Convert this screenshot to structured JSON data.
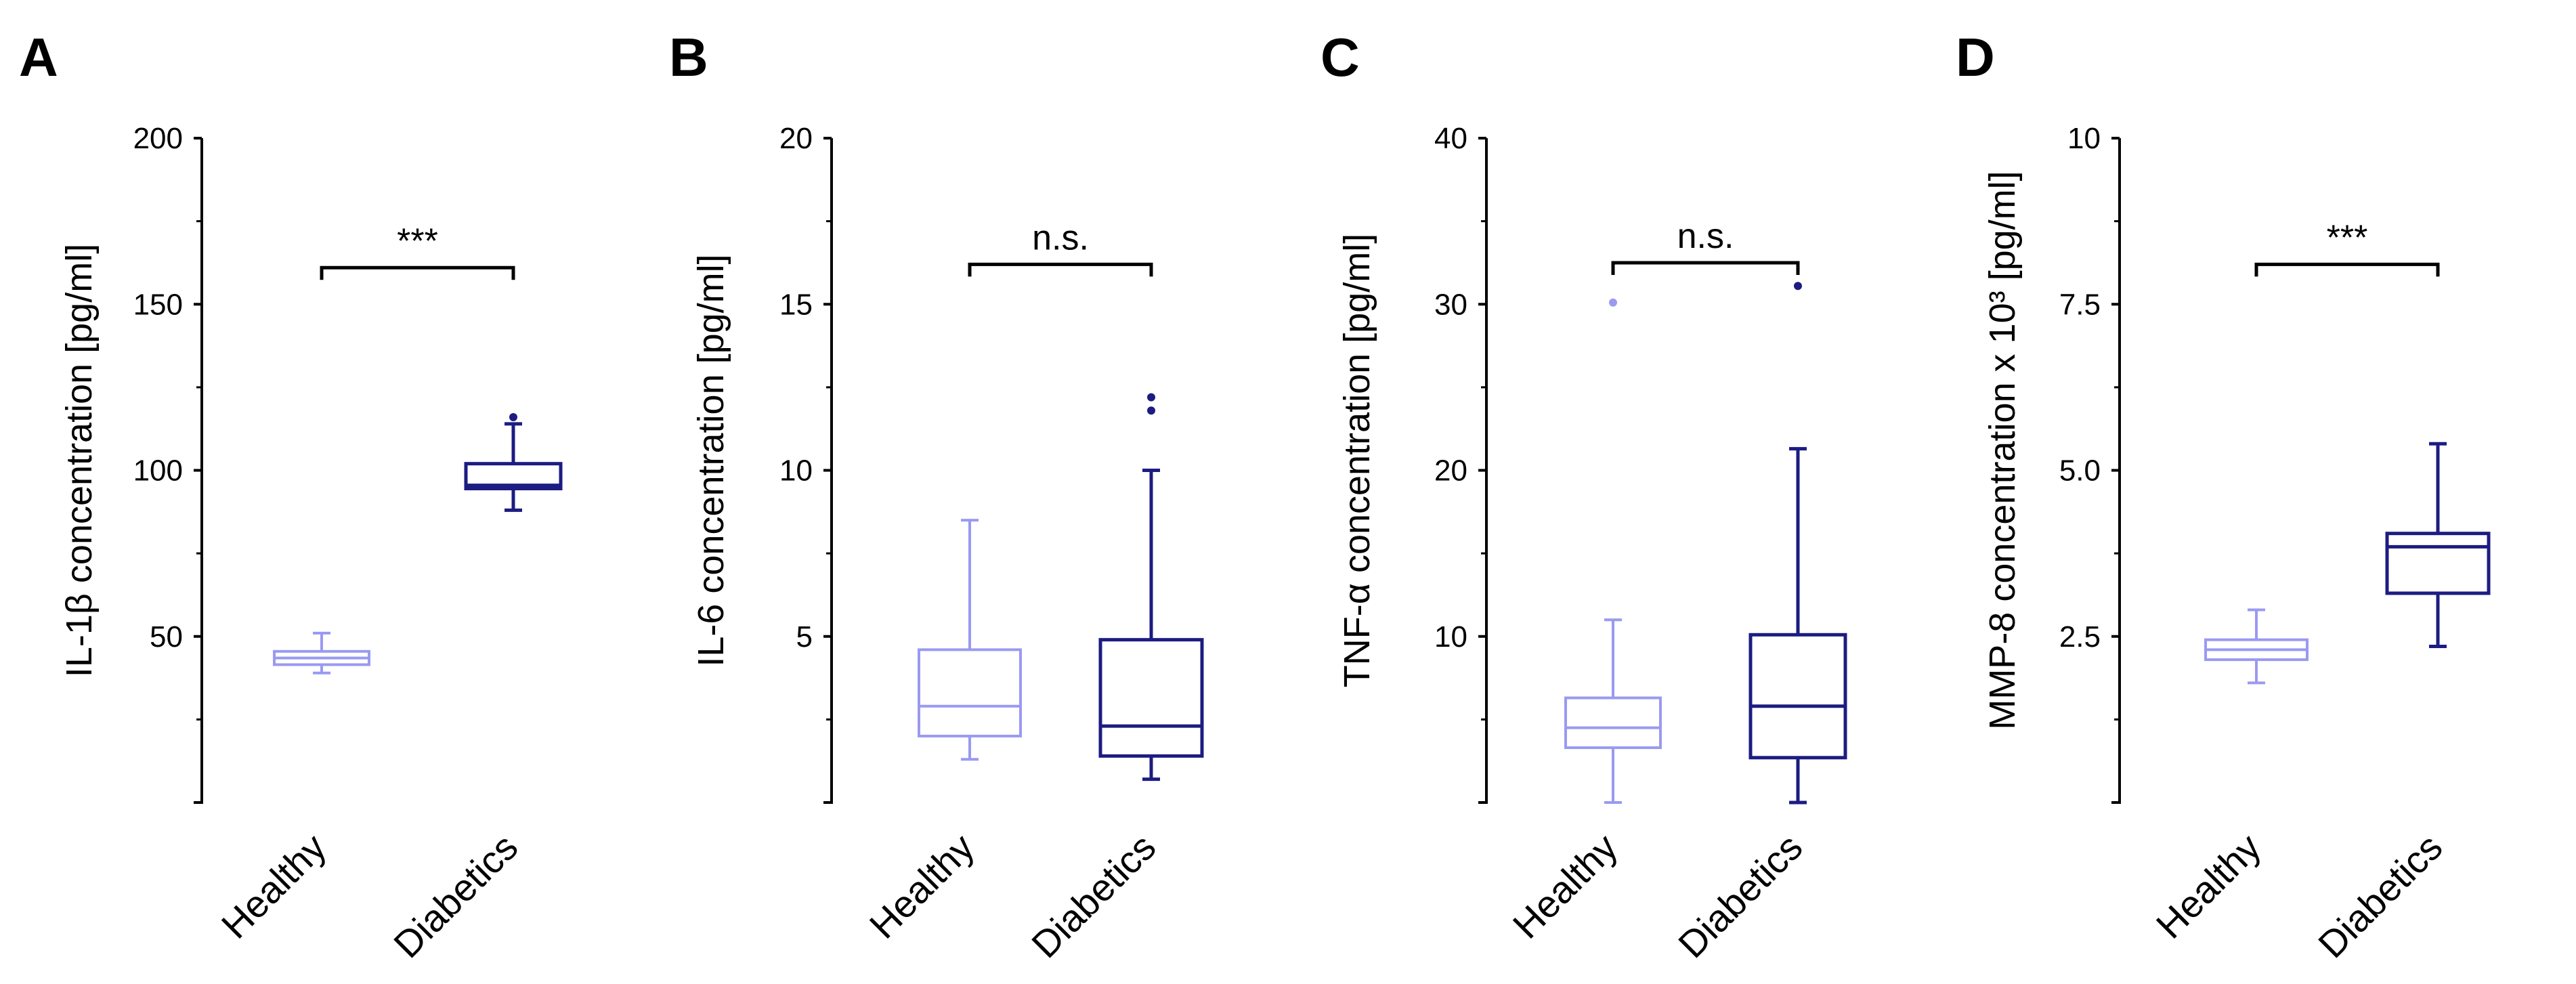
{
  "figure": {
    "colors": {
      "healthy": "#9a9af2",
      "diabetics": "#1c1c82",
      "axis": "#000000"
    }
  },
  "chart_data": [
    {
      "panel": "A",
      "type": "boxplot",
      "title": "",
      "xlabel": "",
      "ylabel": "IL-1β concentration [pg/ml]",
      "ylim": [
        0,
        200
      ],
      "yticks": [
        50,
        100,
        150,
        200
      ],
      "ytick_labels": [
        "50",
        "100",
        "150",
        "200"
      ],
      "categories": [
        "Healthy",
        "Diabetics"
      ],
      "series": [
        {
          "name": "Healthy",
          "whisker_low": 39,
          "q1": 41.5,
          "median": 43.5,
          "q3": 45.5,
          "whisker_high": 51,
          "outliers": []
        },
        {
          "name": "Diabetics",
          "whisker_low": 88,
          "q1": 94.5,
          "median": 95.5,
          "q3": 102,
          "whisker_high": 114,
          "outliers": [
            116
          ]
        }
      ],
      "significance": {
        "label": "***",
        "between": [
          "Healthy",
          "Diabetics"
        ],
        "y": 161
      }
    },
    {
      "panel": "B",
      "type": "boxplot",
      "title": "",
      "xlabel": "",
      "ylabel": "IL-6 concentration [pg/ml]",
      "ylim": [
        0,
        20
      ],
      "yticks": [
        5,
        10,
        15,
        20
      ],
      "ytick_labels": [
        "5",
        "10",
        "15",
        "20"
      ],
      "categories": [
        "Healthy",
        "Diabetics"
      ],
      "series": [
        {
          "name": "Healthy",
          "whisker_low": 1.3,
          "q1": 2.0,
          "median": 2.9,
          "q3": 4.6,
          "whisker_high": 8.5,
          "outliers": []
        },
        {
          "name": "Diabetics",
          "whisker_low": 0.7,
          "q1": 1.4,
          "median": 2.3,
          "q3": 4.9,
          "whisker_high": 10.0,
          "outliers": [
            11.8,
            12.2
          ]
        }
      ],
      "significance": {
        "label": "n.s.",
        "between": [
          "Healthy",
          "Diabetics"
        ],
        "y": 16.2
      }
    },
    {
      "panel": "C",
      "type": "boxplot",
      "title": "",
      "xlabel": "",
      "ylabel": "TNF-α concentration [pg/ml]",
      "ylim": [
        0,
        40
      ],
      "yticks": [
        10,
        20,
        30,
        40
      ],
      "ytick_labels": [
        "10",
        "20",
        "30",
        "40"
      ],
      "categories": [
        "Healthy",
        "Diabetics"
      ],
      "series": [
        {
          "name": "Healthy",
          "whisker_low": 0,
          "q1": 3.3,
          "median": 4.5,
          "q3": 6.3,
          "whisker_high": 11.0,
          "outliers": [
            30.1
          ]
        },
        {
          "name": "Diabetics",
          "whisker_low": 0,
          "q1": 2.7,
          "median": 5.8,
          "q3": 10.1,
          "whisker_high": 21.3,
          "outliers": [
            31.1
          ]
        }
      ],
      "significance": {
        "label": "n.s.",
        "between": [
          "Healthy",
          "Diabetics"
        ],
        "y": 32.5
      }
    },
    {
      "panel": "D",
      "type": "boxplot",
      "title": "",
      "xlabel": "",
      "ylabel": "MMP-8 concentration x 10³ [pg/ml]",
      "ylim": [
        0,
        10
      ],
      "yticks": [
        2.5,
        5.0,
        7.5,
        10
      ],
      "ytick_labels": [
        "2.5",
        "5.0",
        "7.5",
        "10"
      ],
      "categories": [
        "Healthy",
        "Diabetics"
      ],
      "series": [
        {
          "name": "Healthy",
          "whisker_low": 1.8,
          "q1": 2.15,
          "median": 2.3,
          "q3": 2.45,
          "whisker_high": 2.9,
          "outliers": []
        },
        {
          "name": "Diabetics",
          "whisker_low": 2.35,
          "q1": 3.15,
          "median": 3.85,
          "q3": 4.05,
          "whisker_high": 5.4,
          "outliers": []
        }
      ],
      "significance": {
        "label": "***",
        "between": [
          "Healthy",
          "Diabetics"
        ],
        "y": 8.1
      }
    }
  ]
}
